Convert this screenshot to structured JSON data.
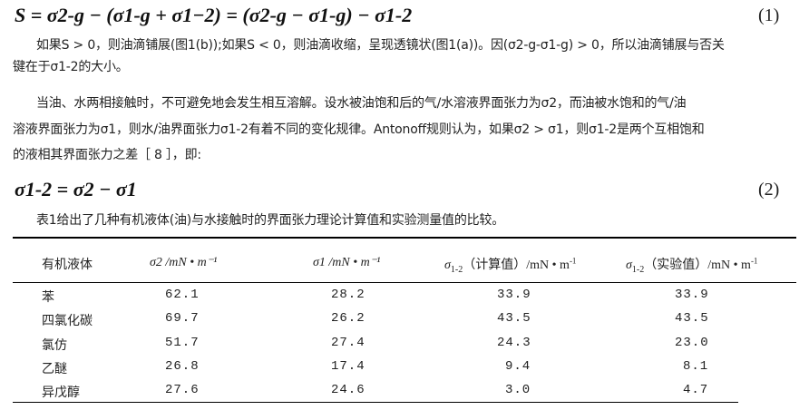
{
  "equation1": {
    "text": "S = σ2-g − (σ1-g + σ1−2) = (σ2-g − σ1-g) − σ1-2",
    "number": "(1)"
  },
  "paragraph1": [
    "如果S > 0，则油滴铺展(图1(b));如果S < 0，则油滴收缩，呈现透镜状(图1(a))。因(σ2-g-σ1-g) > 0，所以油滴铺展与否关",
    "键在于σ1-2的大小。"
  ],
  "paragraph2": [
    "当油、水两相接触时，不可避免地会发生相互溶解。设水被油饱和后的气/水溶液界面张力为σ2，而油被水饱和的气/油",
    "溶液界面张力为σ1，则水/油界面张力σ1-2有着不同的变化规律。Antonoff规则认为，如果σ2 > σ1，则σ1-2是两个互相饱和",
    "的液相其界面张力之差［ 8 ］，即:"
  ],
  "equation2": {
    "text": "σ1-2 = σ2 − σ1",
    "number": "(2)"
  },
  "caption": "表1给出了几种有机液体(油)与水接触时的界面张力理论计算值和实验测量值的比较。",
  "table": {
    "headers": [
      "有机液体",
      "σ2 /mN • m⁻¹",
      "σ1 /mN • m⁻¹",
      "σ1-2（计算值）/mN • m⁻¹",
      "σ1-2（实验值）/mN • m⁻¹"
    ],
    "rows": [
      [
        "苯",
        "62.1",
        "28.2",
        "33.9",
        "33.9"
      ],
      [
        "四氯化碳",
        "69.7",
        "26.2",
        "43.5",
        "43.5"
      ],
      [
        "氯仿",
        "51.7",
        "27.4",
        "24.3",
        "23.0"
      ],
      [
        "乙醚",
        "26.8",
        "17.4",
        "9.4",
        "8.1"
      ],
      [
        "异戊醇",
        "27.6",
        "24.6",
        "3.0",
        "4.7"
      ]
    ]
  }
}
